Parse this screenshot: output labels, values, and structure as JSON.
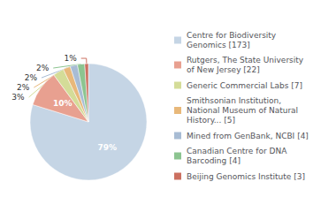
{
  "chart_data": {
    "type": "pie",
    "categories": [
      "Centre for Biodiversity\nGenomics [173]",
      "Rutgers, The State University\nof New Jersey [22]",
      "Generic Commercial Labs [7]",
      "Smithsonian Institution,\nNational Museum of Natural\nHistory... [5]",
      "Mined from GenBank, NCBI [4]",
      "Canadian Centre for DNA\nBarcoding [4]",
      "Beijing Genomics Institute [3]"
    ],
    "values": [
      79,
      10,
      3,
      2,
      2,
      2,
      1
    ],
    "value_labels": [
      "79%",
      "10%",
      "3%",
      "2%",
      "2%",
      "2%",
      "1%"
    ],
    "colors": [
      "#c5d5e5",
      "#e8a090",
      "#d4dc98",
      "#e8b87a",
      "#a8bcd4",
      "#8cc490",
      "#cc7060"
    ],
    "data_labels": true,
    "legend": "right"
  }
}
